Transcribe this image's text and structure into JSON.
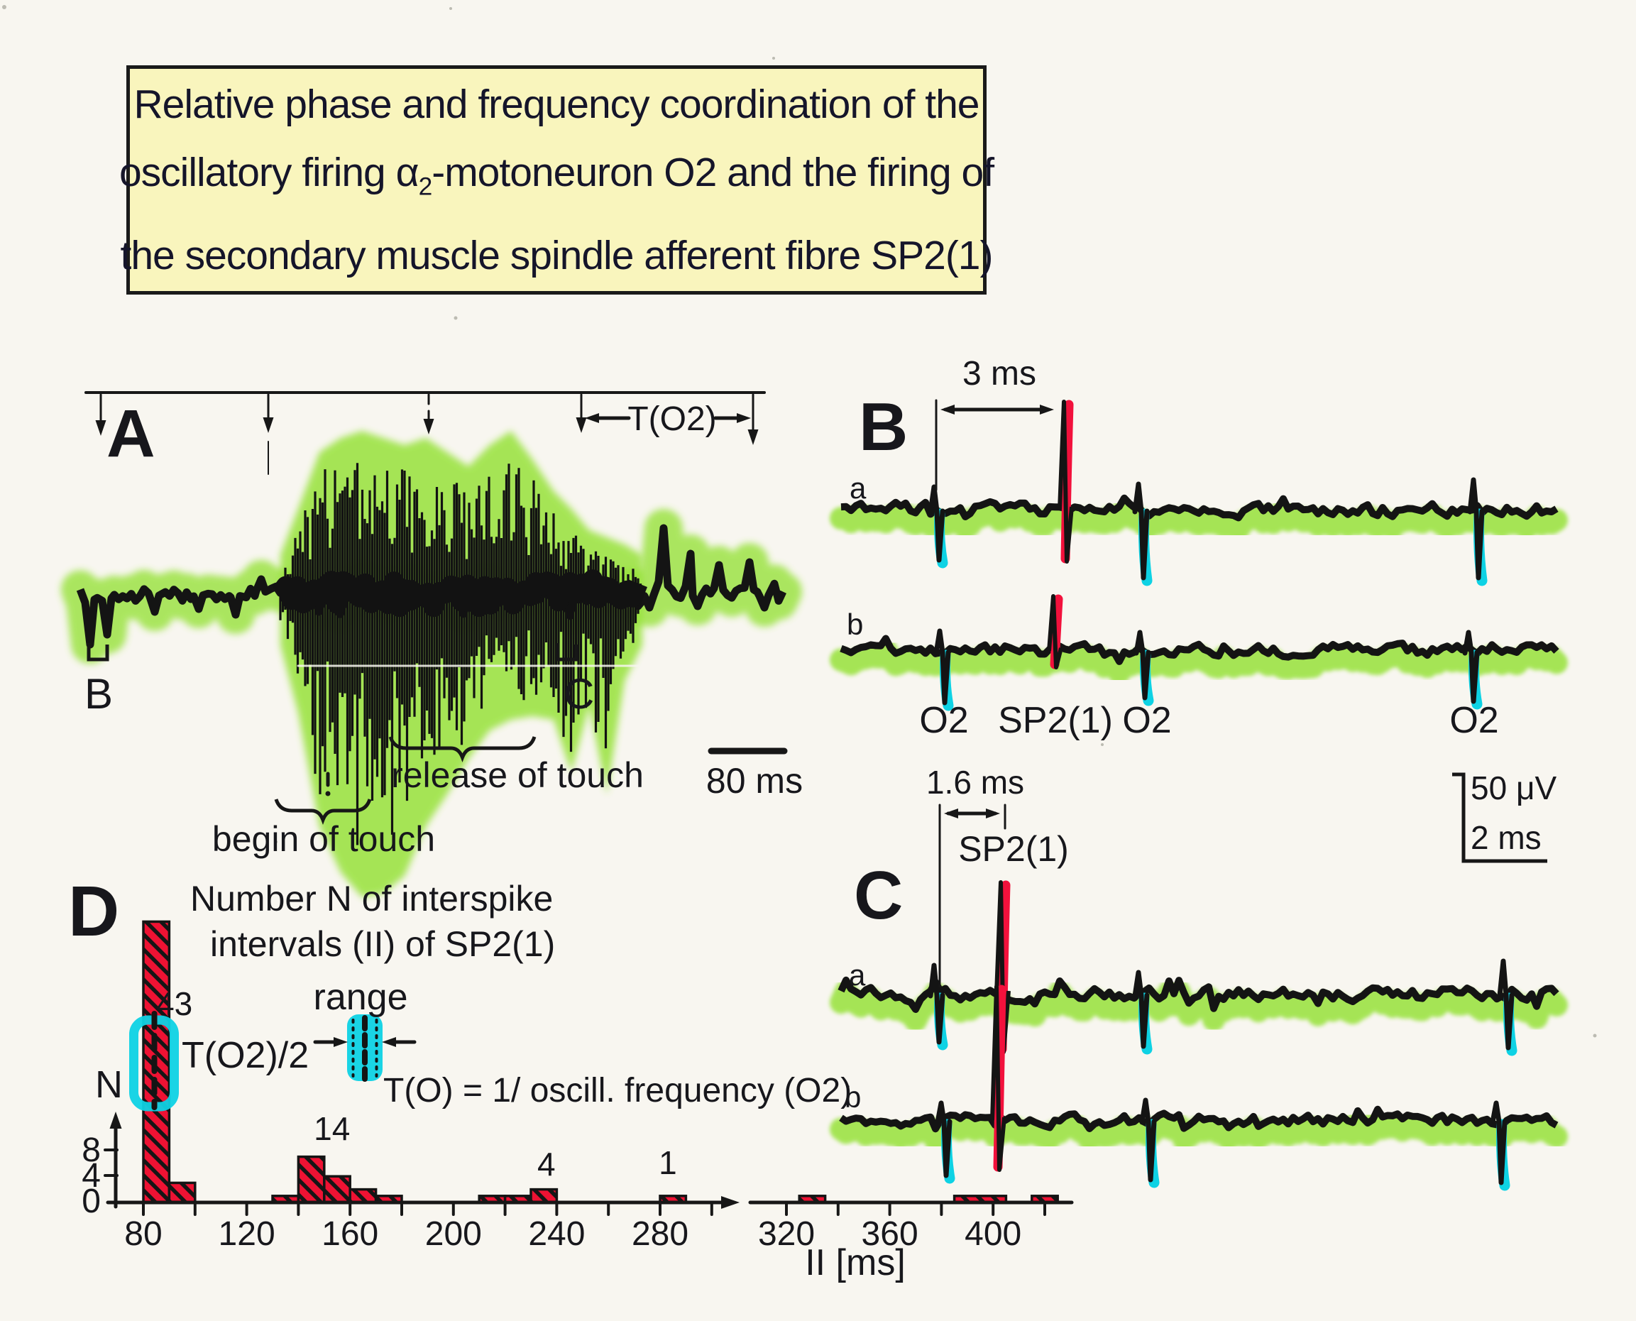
{
  "title": {
    "line1": "Relative phase and frequency coordination of the",
    "line2_pre": "oscillatory firing α",
    "line2_sub": "2",
    "line2_post": "-motoneuron O2 and the firing of",
    "line3": "the secondary muscle spindle afferent fibre SP2(1)"
  },
  "panelA": {
    "label": "A",
    "t_o2": "T(O2)",
    "bracket_b": "B",
    "bracket_c": "C",
    "begin_touch": "begin of touch",
    "release_touch": "release of touch",
    "scale": "80 ms"
  },
  "panelB": {
    "label": "B",
    "interval": "3 ms",
    "trace_a": "a",
    "trace_b": "b",
    "spike_labels": [
      "O2",
      "SP2(1)",
      "O2",
      "O2"
    ]
  },
  "panelC": {
    "label": "C",
    "interval": "1.6 ms",
    "afferent": "SP2(1)",
    "trace_a": "a",
    "trace_b": "b",
    "scale_voltage": "50 μV",
    "scale_time": "2 ms"
  },
  "panelD": {
    "label": "D",
    "title_line1": "Number N of interspike",
    "title_line2": "intervals (II) of SP2(1)",
    "half_period": "T(O2)/2",
    "range_label": "range",
    "formula": "T(O) = 1/ oscill. frequency (O2)",
    "y_axis": "N",
    "y_ticks": [
      "8",
      "4",
      "0"
    ],
    "x_label": "II [ms]"
  },
  "chart_data": {
    "type": "bar",
    "title": "Number N of interspike intervals (II) of SP2(1)",
    "xlabel": "II [ms]",
    "ylabel": "N",
    "bin_width_ms": 10,
    "x_tick_step_ms": 20,
    "x_ticks_segment1": [
      80,
      100,
      120,
      140,
      160,
      180,
      200,
      220,
      240,
      260,
      280,
      300
    ],
    "x_ticks_segment2": [
      320,
      340,
      360,
      380,
      400,
      420
    ],
    "x_tick_labels": [
      80,
      120,
      160,
      200,
      240,
      280,
      320,
      360,
      400
    ],
    "axis_break_between": [
      300,
      320
    ],
    "y_ticks": [
      0,
      4,
      8
    ],
    "ylim": [
      0,
      46
    ],
    "bins": [
      {
        "start": 80,
        "width": 10,
        "n": 43
      },
      {
        "start": 90,
        "width": 10,
        "n": 3
      },
      {
        "start": 130,
        "width": 10,
        "n": 1
      },
      {
        "start": 140,
        "width": 10,
        "n": 7
      },
      {
        "start": 150,
        "width": 10,
        "n": 4
      },
      {
        "start": 160,
        "width": 10,
        "n": 2
      },
      {
        "start": 170,
        "width": 10,
        "n": 1
      },
      {
        "start": 210,
        "width": 10,
        "n": 1
      },
      {
        "start": 220,
        "width": 10,
        "n": 1
      },
      {
        "start": 230,
        "width": 10,
        "n": 2
      },
      {
        "start": 280,
        "width": 10,
        "n": 1
      },
      {
        "start": 325,
        "width": 10,
        "n": 1
      },
      {
        "start": 385,
        "width": 20,
        "n": 1
      },
      {
        "start": 415,
        "width": 10,
        "n": 1
      }
    ],
    "peak_annotations": [
      {
        "text": "43",
        "ms": 92,
        "top": 1390
      },
      {
        "text": "14",
        "ms": 153,
        "top": 1566
      },
      {
        "text": "4",
        "ms": 236,
        "top": 1616
      },
      {
        "text": "1",
        "ms": 283,
        "top": 1614
      }
    ]
  },
  "colors": {
    "background": "#f8f6f0",
    "title_fill": "#f9f5bd",
    "highlight_green": "#97e23a",
    "spike_cyan": "#0ed2e4",
    "spike_red": "#f2113c",
    "histogram_red": "#ee1233",
    "ink": "#171717"
  },
  "traces": {
    "A": {
      "baseline": 836,
      "x0": 113,
      "x1": 1107,
      "noise_amp": 11,
      "seed": 7,
      "features": [
        {
          "x": 127,
          "dy": 72
        },
        {
          "x": 151,
          "dy": 58
        },
        {
          "x": 218,
          "dy": 26
        },
        {
          "x": 280,
          "dy": 22
        },
        {
          "x": 332,
          "dy": 30
        },
        {
          "x": 368,
          "dy": -20
        },
        {
          "x": 915,
          "dy": 20
        },
        {
          "x": 935,
          "dy": -92
        },
        {
          "x": 973,
          "dy": -56
        },
        {
          "x": 983,
          "dy": 18
        },
        {
          "x": 1013,
          "dy": -40
        },
        {
          "x": 1056,
          "dy": -44
        },
        {
          "x": 1077,
          "dy": 20
        },
        {
          "x": 1098,
          "dy": 40
        }
      ],
      "burst": {
        "x0": 395,
        "x1": 905,
        "env": [
          [
            395,
            30,
            45
          ],
          [
            420,
            95,
            140
          ],
          [
            450,
            175,
            300
          ],
          [
            480,
            195,
            365
          ],
          [
            510,
            205,
            400
          ],
          [
            540,
            195,
            395
          ],
          [
            570,
            185,
            370
          ],
          [
            600,
            195,
            300
          ],
          [
            630,
            175,
            255
          ],
          [
            660,
            155,
            205
          ],
          [
            690,
            185,
            165
          ],
          [
            720,
            205,
            150
          ],
          [
            750,
            165,
            145
          ],
          [
            780,
            120,
            150
          ],
          [
            805,
            95,
            225
          ],
          [
            830,
            65,
            130
          ],
          [
            855,
            55,
            255
          ],
          [
            880,
            45,
            95
          ],
          [
            905,
            30,
            45
          ]
        ]
      }
    },
    "B_a": {
      "baseline": 718,
      "x0": 1185,
      "x1": 2197,
      "noise_amp": 8,
      "seed": 11,
      "o2": [
        {
          "x": 1322,
          "depth": 75,
          "pre": 32
        },
        {
          "x": 1610,
          "depth": 100,
          "pre": 36
        },
        {
          "x": 2082,
          "depth": 100,
          "pre": 42
        }
      ],
      "sp2": {
        "x": 1502,
        "rise": 152,
        "dip": 73
      }
    },
    "B_b": {
      "baseline": 917,
      "x0": 1185,
      "x1": 2197,
      "noise_amp": 7,
      "seed": 23,
      "o2": [
        {
          "x": 1330,
          "depth": 77,
          "pre": 28
        },
        {
          "x": 1612,
          "depth": 70,
          "pre": 26
        },
        {
          "x": 2075,
          "depth": 75,
          "pre": 26
        }
      ],
      "sp2": {
        "x": 1487,
        "rise": 77,
        "dip": 23
      }
    },
    "C_a": {
      "baseline": 1400,
      "x0": 1185,
      "x1": 2197,
      "noise_amp": 8,
      "seed": 37,
      "o2": [
        {
          "x": 1322,
          "depth": 72,
          "pre": 40
        },
        {
          "x": 1610,
          "depth": 78,
          "pre": 30
        },
        {
          "x": 2124,
          "depth": 80,
          "pre": 46
        }
      ],
      "sp2": {
        "x": 1413,
        "rise": 157,
        "dip": 82
      }
    },
    "C_b": {
      "baseline": 1578,
      "x0": 1185,
      "x1": 2197,
      "noise_amp": 7,
      "seed": 51,
      "o2": [
        {
          "x": 1332,
          "depth": 82,
          "pre": 24
        },
        {
          "x": 1620,
          "depth": 88,
          "pre": 28
        },
        {
          "x": 2114,
          "depth": 92,
          "pre": 24
        }
      ],
      "sp2": {
        "x": 1407,
        "rise": 188,
        "dip": 70
      }
    }
  }
}
